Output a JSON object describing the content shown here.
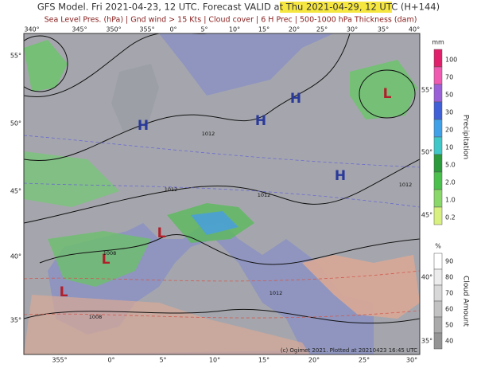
{
  "header": {
    "title": "GFS Model. Fri 2021-04-23, 12 UTC. Forecast VALID at Thu 2021-04-29, 12 UTC (H+144)",
    "subtitle": "Sea Level Pres. (hPa) | Gnd wind > 15 Kts | Cloud cover | 6 H Prec | 500-1000 hPa Thickness (dam)"
  },
  "map": {
    "lon_top": [
      "340°",
      "345°",
      "350°",
      "355°",
      "0°",
      "5°",
      "10°",
      "15°",
      "20°",
      "25°",
      "30°",
      "35°",
      "40°"
    ],
    "lon_bottom": [
      "355°",
      "0°",
      "5°",
      "10°",
      "15°",
      "20°",
      "25°",
      "30°"
    ],
    "lat_left": [
      "55°",
      "50°",
      "45°",
      "40°",
      "35°"
    ],
    "lat_right": [
      "55°",
      "50°",
      "45°",
      "40°",
      "35°"
    ],
    "pressure_centers": [
      "H",
      "H",
      "H",
      "H",
      "L",
      "L",
      "L",
      "L"
    ],
    "isobar_labels": [
      "1012",
      "1012",
      "1012",
      "1008",
      "1012",
      "1012",
      "1008"
    ],
    "credit": "(c) Ogimet 2021. Plotted at 20210423 16:45 UTC"
  },
  "legend": {
    "precipitation": {
      "unit": "mm",
      "title": "Precipitation",
      "labels": [
        "100",
        "70",
        "50",
        "30",
        "20",
        "10",
        "5.0",
        "2.0",
        "1.0",
        "0.2"
      ]
    },
    "cloud": {
      "unit": "%",
      "title": "Cloud Amount",
      "labels": [
        "90",
        "80",
        "70",
        "60",
        "50",
        "40"
      ]
    }
  }
}
